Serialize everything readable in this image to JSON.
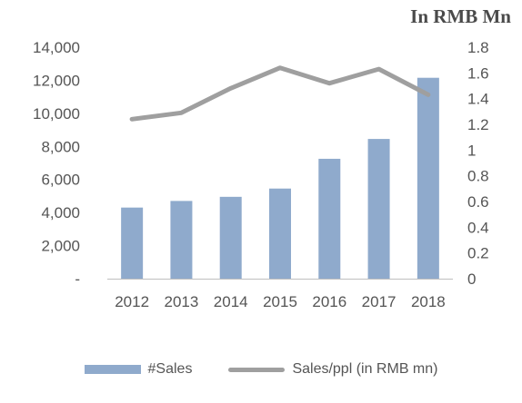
{
  "chart_data": {
    "type": "bar",
    "unit_label": "In RMB Mn",
    "categories": [
      "2012",
      "2013",
      "2014",
      "2015",
      "2016",
      "2017",
      "2018"
    ],
    "series": [
      {
        "name": "#Sales",
        "type": "bar",
        "axis": "left",
        "color": "#8faacc",
        "values": [
          4300,
          4700,
          4950,
          5450,
          7250,
          8450,
          12150
        ]
      },
      {
        "name": "Sales/ppl (in RMB mn)",
        "type": "line",
        "axis": "right",
        "color": "#9f9f9f",
        "values": [
          1.24,
          1.29,
          1.48,
          1.64,
          1.52,
          1.63,
          1.43
        ]
      }
    ],
    "y_left": {
      "min": 0,
      "max": 14000,
      "tick_labels": [
        "-",
        "2,000",
        "4,000",
        "6,000",
        "8,000",
        "10,000",
        "12,000",
        "14,000"
      ]
    },
    "y_right": {
      "min": 0,
      "max": 1.8,
      "tick_labels": [
        "0",
        "0.2",
        "0.4",
        "0.6",
        "0.8",
        "1",
        "1.2",
        "1.4",
        "1.6",
        "1.8"
      ]
    },
    "grid": false,
    "legend_position": "bottom"
  }
}
